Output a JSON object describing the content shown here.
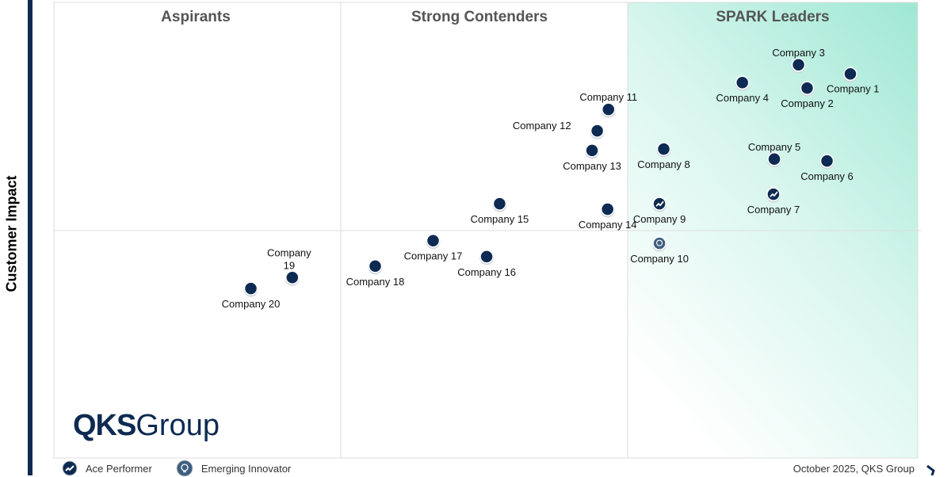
{
  "chart_data": {
    "type": "scatter",
    "ylabel": "Customer Impact",
    "xlim": [
      0,
      100
    ],
    "ylim": [
      0,
      100
    ],
    "grid": false,
    "quadrants": [
      "Aspirants",
      "Strong Contenders",
      "SPARK Leaders"
    ],
    "legend": [
      {
        "label": "Ace Performer",
        "icon": "trend-up-icon"
      },
      {
        "label": "Emerging Innovator",
        "icon": "lightbulb-icon"
      }
    ],
    "legend_placement": "bottom-left",
    "colors": {
      "point": "#0d2a52",
      "emerging": "#3e5f80",
      "leader_gradient": "#9fe8d3"
    },
    "points": [
      {
        "name": "Company 1",
        "x": 92.2,
        "y": 84.3,
        "type": "standard"
      },
      {
        "name": "Company 2",
        "x": 87.2,
        "y": 81.2,
        "type": "standard"
      },
      {
        "name": "Company 3",
        "x": 86.2,
        "y": 86.3,
        "type": "standard"
      },
      {
        "name": "Company 4",
        "x": 79.7,
        "y": 82.4,
        "type": "standard"
      },
      {
        "name": "Company 5",
        "x": 83.4,
        "y": 65.6,
        "type": "standard"
      },
      {
        "name": "Company 6",
        "x": 89.5,
        "y": 65.2,
        "type": "standard"
      },
      {
        "name": "Company 7",
        "x": 83.3,
        "y": 57.9,
        "type": "ace"
      },
      {
        "name": "Company 8",
        "x": 70.6,
        "y": 67.8,
        "type": "standard"
      },
      {
        "name": "Company 9",
        "x": 70.1,
        "y": 55.8,
        "type": "ace"
      },
      {
        "name": "Company 10",
        "x": 70.1,
        "y": 47.1,
        "type": "emerging"
      },
      {
        "name": "Company 11",
        "x": 64.2,
        "y": 76.5,
        "type": "standard"
      },
      {
        "name": "Company 12",
        "x": 62.9,
        "y": 71.8,
        "type": "standard"
      },
      {
        "name": "Company 13",
        "x": 62.3,
        "y": 67.5,
        "type": "standard"
      },
      {
        "name": "Company 14",
        "x": 64.1,
        "y": 54.6,
        "type": "standard"
      },
      {
        "name": "Company 15",
        "x": 51.6,
        "y": 55.8,
        "type": "standard"
      },
      {
        "name": "Company 16",
        "x": 50.1,
        "y": 44.2,
        "type": "standard"
      },
      {
        "name": "Company 17",
        "x": 43.9,
        "y": 47.7,
        "type": "standard"
      },
      {
        "name": "Company 18",
        "x": 37.2,
        "y": 42.1,
        "type": "standard"
      },
      {
        "name": "Company 19",
        "x": 27.6,
        "y": 39.6,
        "type": "standard"
      },
      {
        "name": "Company 20",
        "x": 22.8,
        "y": 37.2,
        "type": "standard"
      }
    ]
  },
  "logo": {
    "bold": "QKS",
    "rest": "Group"
  },
  "footer": "October 2025, QKS Group"
}
